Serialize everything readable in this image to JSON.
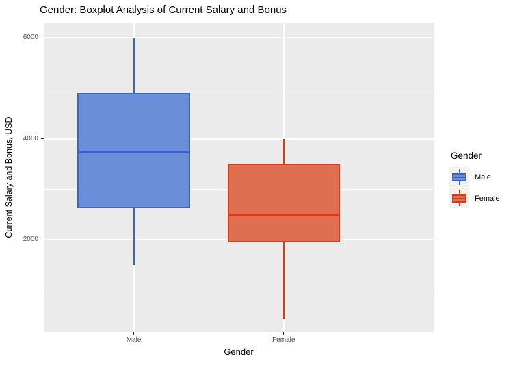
{
  "figure": {
    "title": "Gender: Boxplot Analysis of Current Salary and Bonus"
  },
  "chart_data": {
    "type": "boxplot",
    "title": "Gender: Boxplot Analysis of Current Salary and Bonus",
    "xlabel": "Gender",
    "ylabel": "Current Salary and Bonus, USD",
    "categories": [
      "Male",
      "Female"
    ],
    "series": [
      {
        "name": "Male",
        "min": 1500,
        "q1": 2625,
        "median": 3750,
        "q3": 4900,
        "max": 6000,
        "fill": "#6A8ED8",
        "stroke": "#3A64CC"
      },
      {
        "name": "Female",
        "min": 425,
        "q1": 1950,
        "median": 2500,
        "q3": 3500,
        "max": 4000,
        "fill": "#E06F52",
        "stroke": "#D93C12"
      }
    ],
    "ylim": [
      170,
      6300
    ],
    "yticks": [
      2000,
      4000,
      6000
    ],
    "yticks_minor": [
      1000,
      3000,
      5000
    ],
    "grid": "major+minor horizontal, major vertical at categories",
    "legend": {
      "title": "Gender",
      "position": "right"
    },
    "colors": {
      "panel_bg": "#EBEBEB",
      "grid": "#FFFFFF",
      "tick_label": "#4D4D4D",
      "tick_mark": "#333333",
      "legend_key_bg": "#F2F2F2"
    }
  }
}
